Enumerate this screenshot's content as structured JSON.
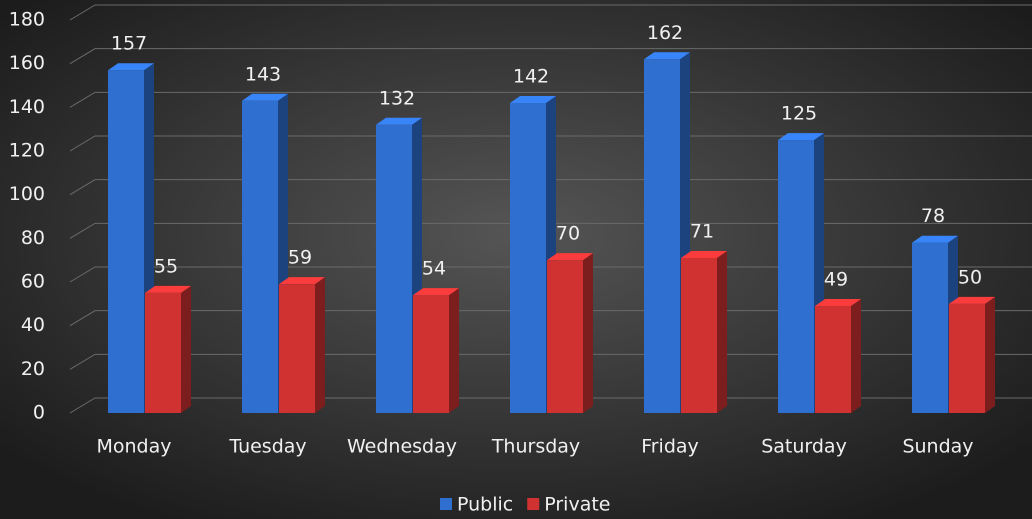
{
  "chart_data": {
    "type": "bar",
    "categories": [
      "Monday",
      "Tuesday",
      "Wednesday",
      "Thursday",
      "Friday",
      "Saturday",
      "Sunday"
    ],
    "series": [
      {
        "name": "Public",
        "color": "#2f6fd0",
        "values": [
          157,
          143,
          132,
          142,
          162,
          125,
          78
        ]
      },
      {
        "name": "Private",
        "color": "#d03232",
        "values": [
          55,
          59,
          54,
          70,
          71,
          49,
          50
        ]
      }
    ],
    "ylim": [
      0,
      180
    ],
    "yticks": [
      0,
      20,
      40,
      60,
      80,
      100,
      120,
      140,
      160,
      180
    ],
    "grid": true,
    "legend": "bottom"
  }
}
